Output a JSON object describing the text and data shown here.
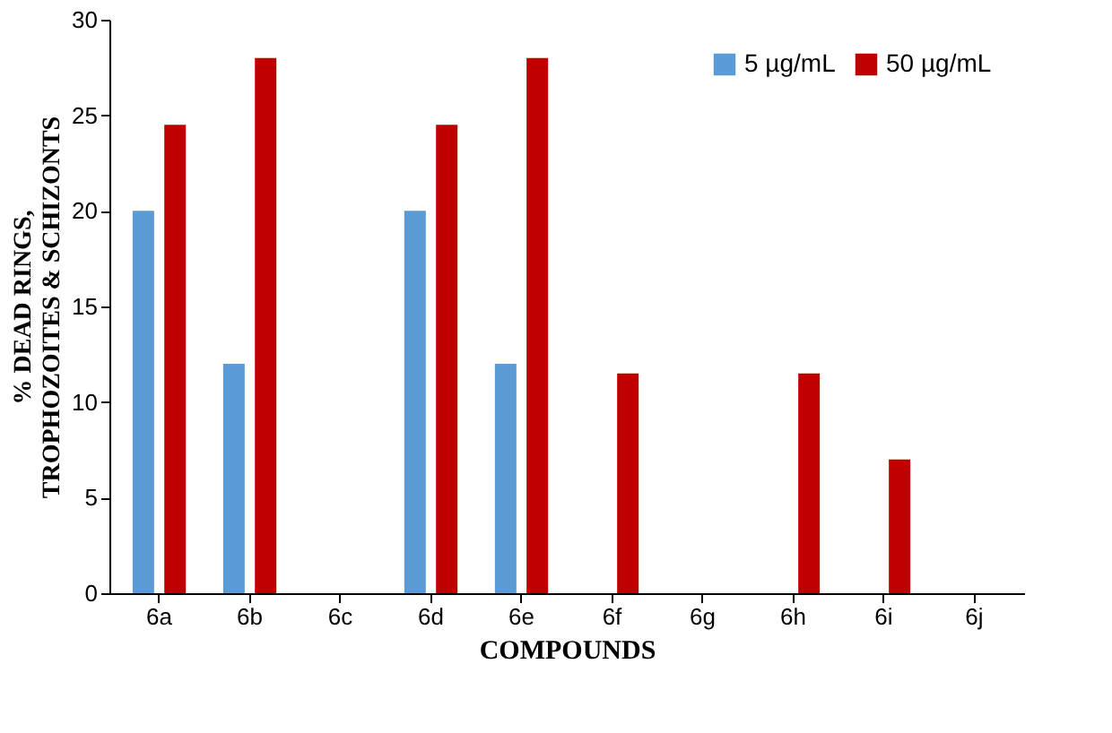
{
  "chart_data": {
    "type": "bar",
    "xlabel": "COMPOUNDS",
    "ylabel": "% DEAD RINGS, TROPHOZOITES & SCHIZONTS",
    "categories": [
      "6a",
      "6b",
      "6c",
      "6d",
      "6e",
      "6f",
      "6g",
      "6h",
      "6i",
      "6j"
    ],
    "series": [
      {
        "name": "5 µg/mL",
        "color": "#5b9bd5",
        "values": [
          20,
          12,
          0,
          20,
          12,
          0,
          0,
          0,
          0,
          0
        ]
      },
      {
        "name": "50 µg/mL",
        "color": "#c00000",
        "values": [
          24.5,
          28,
          0,
          24.5,
          28,
          11.5,
          0,
          11.5,
          7,
          0
        ]
      }
    ],
    "ylim": [
      0,
      30
    ],
    "yticks": [
      0,
      5,
      10,
      15,
      20,
      25,
      30
    ],
    "grid": false,
    "legend": "top right"
  }
}
